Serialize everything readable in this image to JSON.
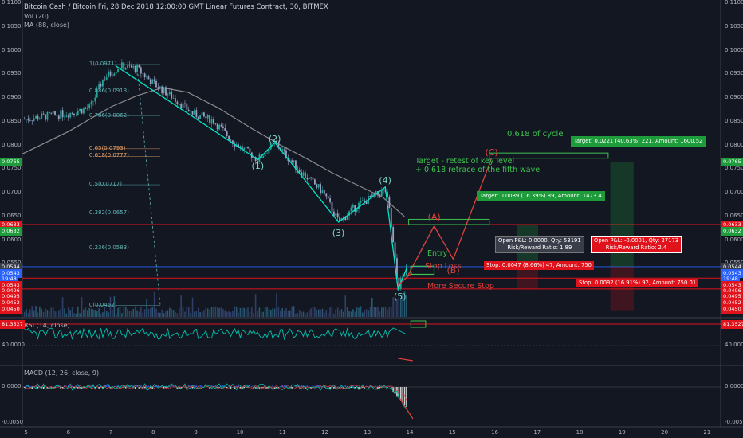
{
  "header": {
    "title": "Bitcoin Cash / Bitcoin Fri, 28 Dec 2018 12:00:00 GMT Linear Futures Contract, 30, BITMEX",
    "vol": "Vol (20)",
    "ma": "MA (88, close)"
  },
  "price_axis": {
    "ticks": [
      "0.1100",
      "0.1050",
      "0.1000",
      "0.0950",
      "0.0900",
      "0.0850",
      "0.0800",
      "0.0750",
      "0.0700",
      "0.0650",
      "0.0600",
      "0.0550",
      "0.0500",
      "0.0450"
    ],
    "left_badges": [
      {
        "text": "0.0765",
        "color": "#1e9b3a",
        "price": 0.0765
      },
      {
        "text": "0.0633",
        "color": "#e0121b",
        "price": 0.0633
      },
      {
        "text": "0.0632",
        "color": "#1e9b3a",
        "price": 0.0619
      },
      {
        "text": "0.0544",
        "color": "#3a3e4a",
        "price": 0.0544
      },
      {
        "text": "0.0543",
        "color": "#2962ff",
        "price": 0.0531
      },
      {
        "text": "19:48",
        "color": "#2962ff",
        "price": 0.0518
      },
      {
        "text": "0.0543",
        "color": "#e0121b",
        "price": 0.0505
      },
      {
        "text": "0.0496",
        "color": "#e0121b",
        "price": 0.0493
      },
      {
        "text": "0.0495",
        "color": "#e0121b",
        "price": 0.0481
      },
      {
        "text": "0.0452",
        "color": "#e0121b",
        "price": 0.0468
      },
      {
        "text": "0.0450",
        "color": "#e0121b",
        "price": 0.0455
      }
    ],
    "right_badges": [
      {
        "text": "0.0765",
        "color": "#1e9b3a",
        "price": 0.0765
      },
      {
        "text": "0.0633",
        "color": "#e0121b",
        "price": 0.0633
      },
      {
        "text": "0.0632",
        "color": "#1e9b3a",
        "price": 0.0619
      },
      {
        "text": "0.0544",
        "color": "#3a3e4a",
        "price": 0.0544
      },
      {
        "text": "0.0543",
        "color": "#2962ff",
        "price": 0.0531
      },
      {
        "text": "19:48",
        "color": "#2962ff",
        "price": 0.0518
      },
      {
        "text": "0.0543",
        "color": "#e0121b",
        "price": 0.0505
      },
      {
        "text": "0.0496",
        "color": "#e0121b",
        "price": 0.0493
      },
      {
        "text": "0.0495",
        "color": "#e0121b",
        "price": 0.0481
      },
      {
        "text": "0.0452",
        "color": "#e0121b",
        "price": 0.0468
      },
      {
        "text": "0.0450",
        "color": "#e0121b",
        "price": 0.0455
      }
    ]
  },
  "fib_levels": [
    {
      "label": "1(0.0971)",
      "price": 0.0971,
      "color": "#5fb3b3"
    },
    {
      "label": "0.886(0.0913)",
      "price": 0.0913,
      "color": "#5fb3b3"
    },
    {
      "label": "0.786(0.0862)",
      "price": 0.0862,
      "color": "#5fb3b3"
    },
    {
      "label": "0.65(0.0793)",
      "price": 0.0793,
      "color": "#e8a065"
    },
    {
      "label": "0.618(0.0777)",
      "price": 0.0777,
      "color": "#e8a065"
    },
    {
      "label": "0.5(0.0717)",
      "price": 0.0717,
      "color": "#5fb3b3"
    },
    {
      "label": "0.382(0.0657)",
      "price": 0.0657,
      "color": "#5fb3b3"
    },
    {
      "label": "0.236(0.0583)",
      "price": 0.0583,
      "color": "#5fb3b3"
    },
    {
      "label": "0(0.0462)",
      "price": 0.0462,
      "color": "#5fb3b3"
    }
  ],
  "waves": [
    {
      "label": "(1)",
      "color": "#7fd4c4",
      "time": 10.45,
      "price": 0.0755
    },
    {
      "label": "(2)",
      "color": "#7fd4c4",
      "time": 10.85,
      "price": 0.0813
    },
    {
      "label": "(3)",
      "color": "#7fd4c4",
      "time": 12.35,
      "price": 0.0614
    },
    {
      "label": "(4)",
      "color": "#7fd4c4",
      "time": 13.45,
      "price": 0.0726
    },
    {
      "label": "(5)",
      "color": "#7fd4c4",
      "time": 13.8,
      "price": 0.048
    },
    {
      "label": "(A)",
      "color": "#e0423a",
      "time": 14.6,
      "price": 0.0648
    },
    {
      "label": "(B)",
      "color": "#e0423a",
      "time": 15.05,
      "price": 0.0535
    },
    {
      "label": "(C)",
      "color": "#e0423a",
      "time": 15.95,
      "price": 0.0784
    }
  ],
  "notes": {
    "cycle": "0.618 of cycle",
    "target_line1": "Target - retest of key level",
    "target_line2": "+ 0.618 retrace of the fifth wave",
    "entry": "Entry",
    "stop_loss": "Stop Loss",
    "secure_stop": "More Secure Stop"
  },
  "position_boxes": {
    "target1": "Target: 0.0089 (16.39%) 89, Amount: 1473.4",
    "target2": "Target: 0.0221 (40.63%) 221, Amount: 1600.52",
    "stop1": "Stop: 0.0047 (8.66%) 47, Amount: 750",
    "stop2": "Stop: 0.0092 (16.91%) 92, Amount: 750.01",
    "pl1_line1": "Open P&L: 0.0000, Qty: 53191",
    "pl1_line2": "Risk/Reward Ratio: 1.89",
    "pl2_line1": "Open P&L: -0.0001, Qty: 27173",
    "pl2_line2": "Risk/Reward Ratio: 2.4"
  },
  "rsi": {
    "title": "RSI (14, close)",
    "value_badge": "81.3527",
    "level": "40.0000"
  },
  "macd": {
    "title": "MACD (12, 26, close, 9)",
    "zero": "0.0000",
    "bottom": "-0.0050"
  },
  "time_axis": [
    "5",
    "6",
    "7",
    "8",
    "9",
    "10",
    "11",
    "12",
    "13",
    "14",
    "15",
    "16",
    "17",
    "18",
    "19",
    "20",
    "21"
  ],
  "colors": {
    "background": "#131722",
    "up": "#26a69a",
    "down": "#9aa1c2",
    "ma": "#8c8c8c",
    "red": "#e0121b",
    "green": "#1e9b3a",
    "blue": "#2962ff"
  }
}
